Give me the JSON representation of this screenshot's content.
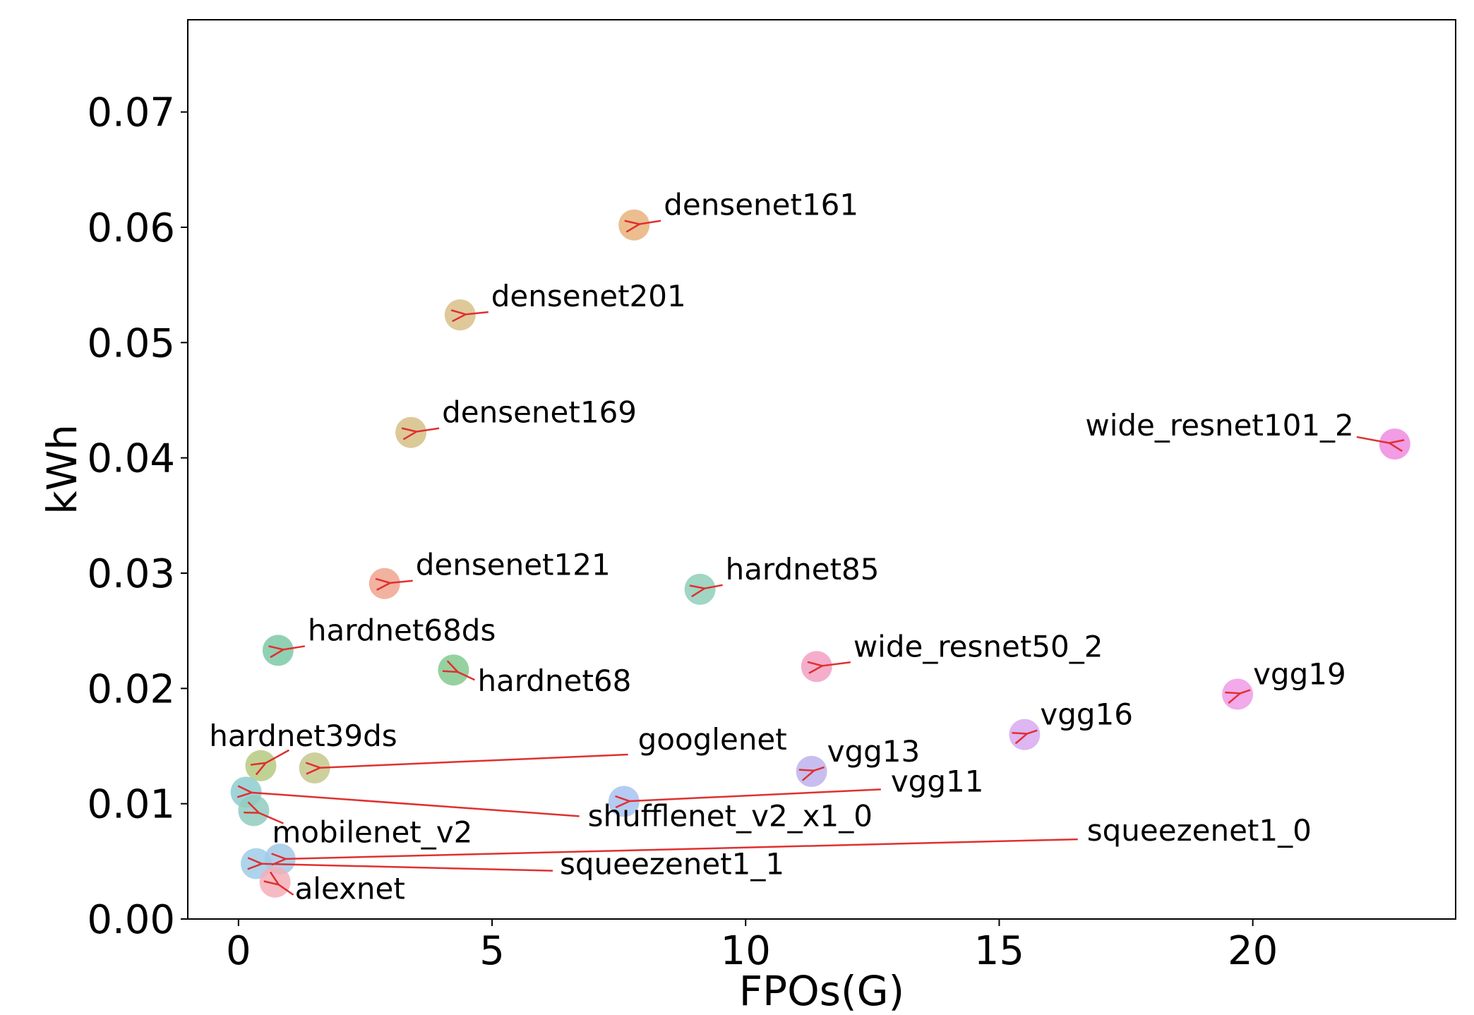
{
  "chart_data": {
    "type": "scatter",
    "xlabel": "FPOs(G)",
    "ylabel": "kWh",
    "xlim": [
      -1.0,
      24.0
    ],
    "ylim": [
      0.0,
      0.078
    ],
    "xticks": [
      0,
      5,
      10,
      15,
      20
    ],
    "yticks": [
      0.0,
      0.01,
      0.02,
      0.03,
      0.04,
      0.05,
      0.06,
      0.07
    ],
    "xtick_labels": [
      "0",
      "5",
      "10",
      "15",
      "20"
    ],
    "ytick_labels": [
      "0.00",
      "0.01",
      "0.02",
      "0.03",
      "0.04",
      "0.05",
      "0.06",
      "0.07"
    ],
    "grid": false,
    "annotation_arrow_color": "#e03030",
    "points": [
      {
        "name": "densenet161",
        "x": 7.8,
        "y": 0.0602,
        "color": "#e8b37d"
      },
      {
        "name": "densenet201",
        "x": 4.37,
        "y": 0.0524,
        "color": "#d9c08a"
      },
      {
        "name": "densenet169",
        "x": 3.4,
        "y": 0.0422,
        "color": "#d6bf86"
      },
      {
        "name": "wide_resnet101_2",
        "x": 22.8,
        "y": 0.0412,
        "color": "#ef8be0"
      },
      {
        "name": "densenet121",
        "x": 2.88,
        "y": 0.0291,
        "color": "#f0a58f"
      },
      {
        "name": "hardnet85",
        "x": 9.1,
        "y": 0.0286,
        "color": "#8fcfb9"
      },
      {
        "name": "hardnet68ds",
        "x": 0.78,
        "y": 0.0233,
        "color": "#7ec9a6"
      },
      {
        "name": "hardnet68",
        "x": 4.24,
        "y": 0.0216,
        "color": "#84c98f"
      },
      {
        "name": "wide_resnet50_2",
        "x": 11.4,
        "y": 0.0219,
        "color": "#f2a0c2"
      },
      {
        "name": "vgg19",
        "x": 19.7,
        "y": 0.0195,
        "color": "#f09be6"
      },
      {
        "name": "vgg16",
        "x": 15.5,
        "y": 0.016,
        "color": "#d7a9f0"
      },
      {
        "name": "hardnet39ds",
        "x": 0.44,
        "y": 0.0133,
        "color": "#b5ca80"
      },
      {
        "name": "googlenet",
        "x": 1.5,
        "y": 0.0131,
        "color": "#c4c88c"
      },
      {
        "name": "vgg13",
        "x": 11.3,
        "y": 0.0128,
        "color": "#bdb3ec"
      },
      {
        "name": "vgg11",
        "x": 7.6,
        "y": 0.0102,
        "color": "#a8c2f0"
      },
      {
        "name": "shufflenet_v2_x1_0",
        "x": 0.15,
        "y": 0.011,
        "color": "#8ecdd0"
      },
      {
        "name": "mobilenet_v2",
        "x": 0.3,
        "y": 0.0094,
        "color": "#90cbc0"
      },
      {
        "name": "squeezenet1_0",
        "x": 0.82,
        "y": 0.0052,
        "color": "#a2c9e6"
      },
      {
        "name": "squeezenet1_1",
        "x": 0.35,
        "y": 0.0048,
        "color": "#9fcde8"
      },
      {
        "name": "alexnet",
        "x": 0.72,
        "y": 0.0032,
        "color": "#f5aeb9"
      }
    ]
  }
}
